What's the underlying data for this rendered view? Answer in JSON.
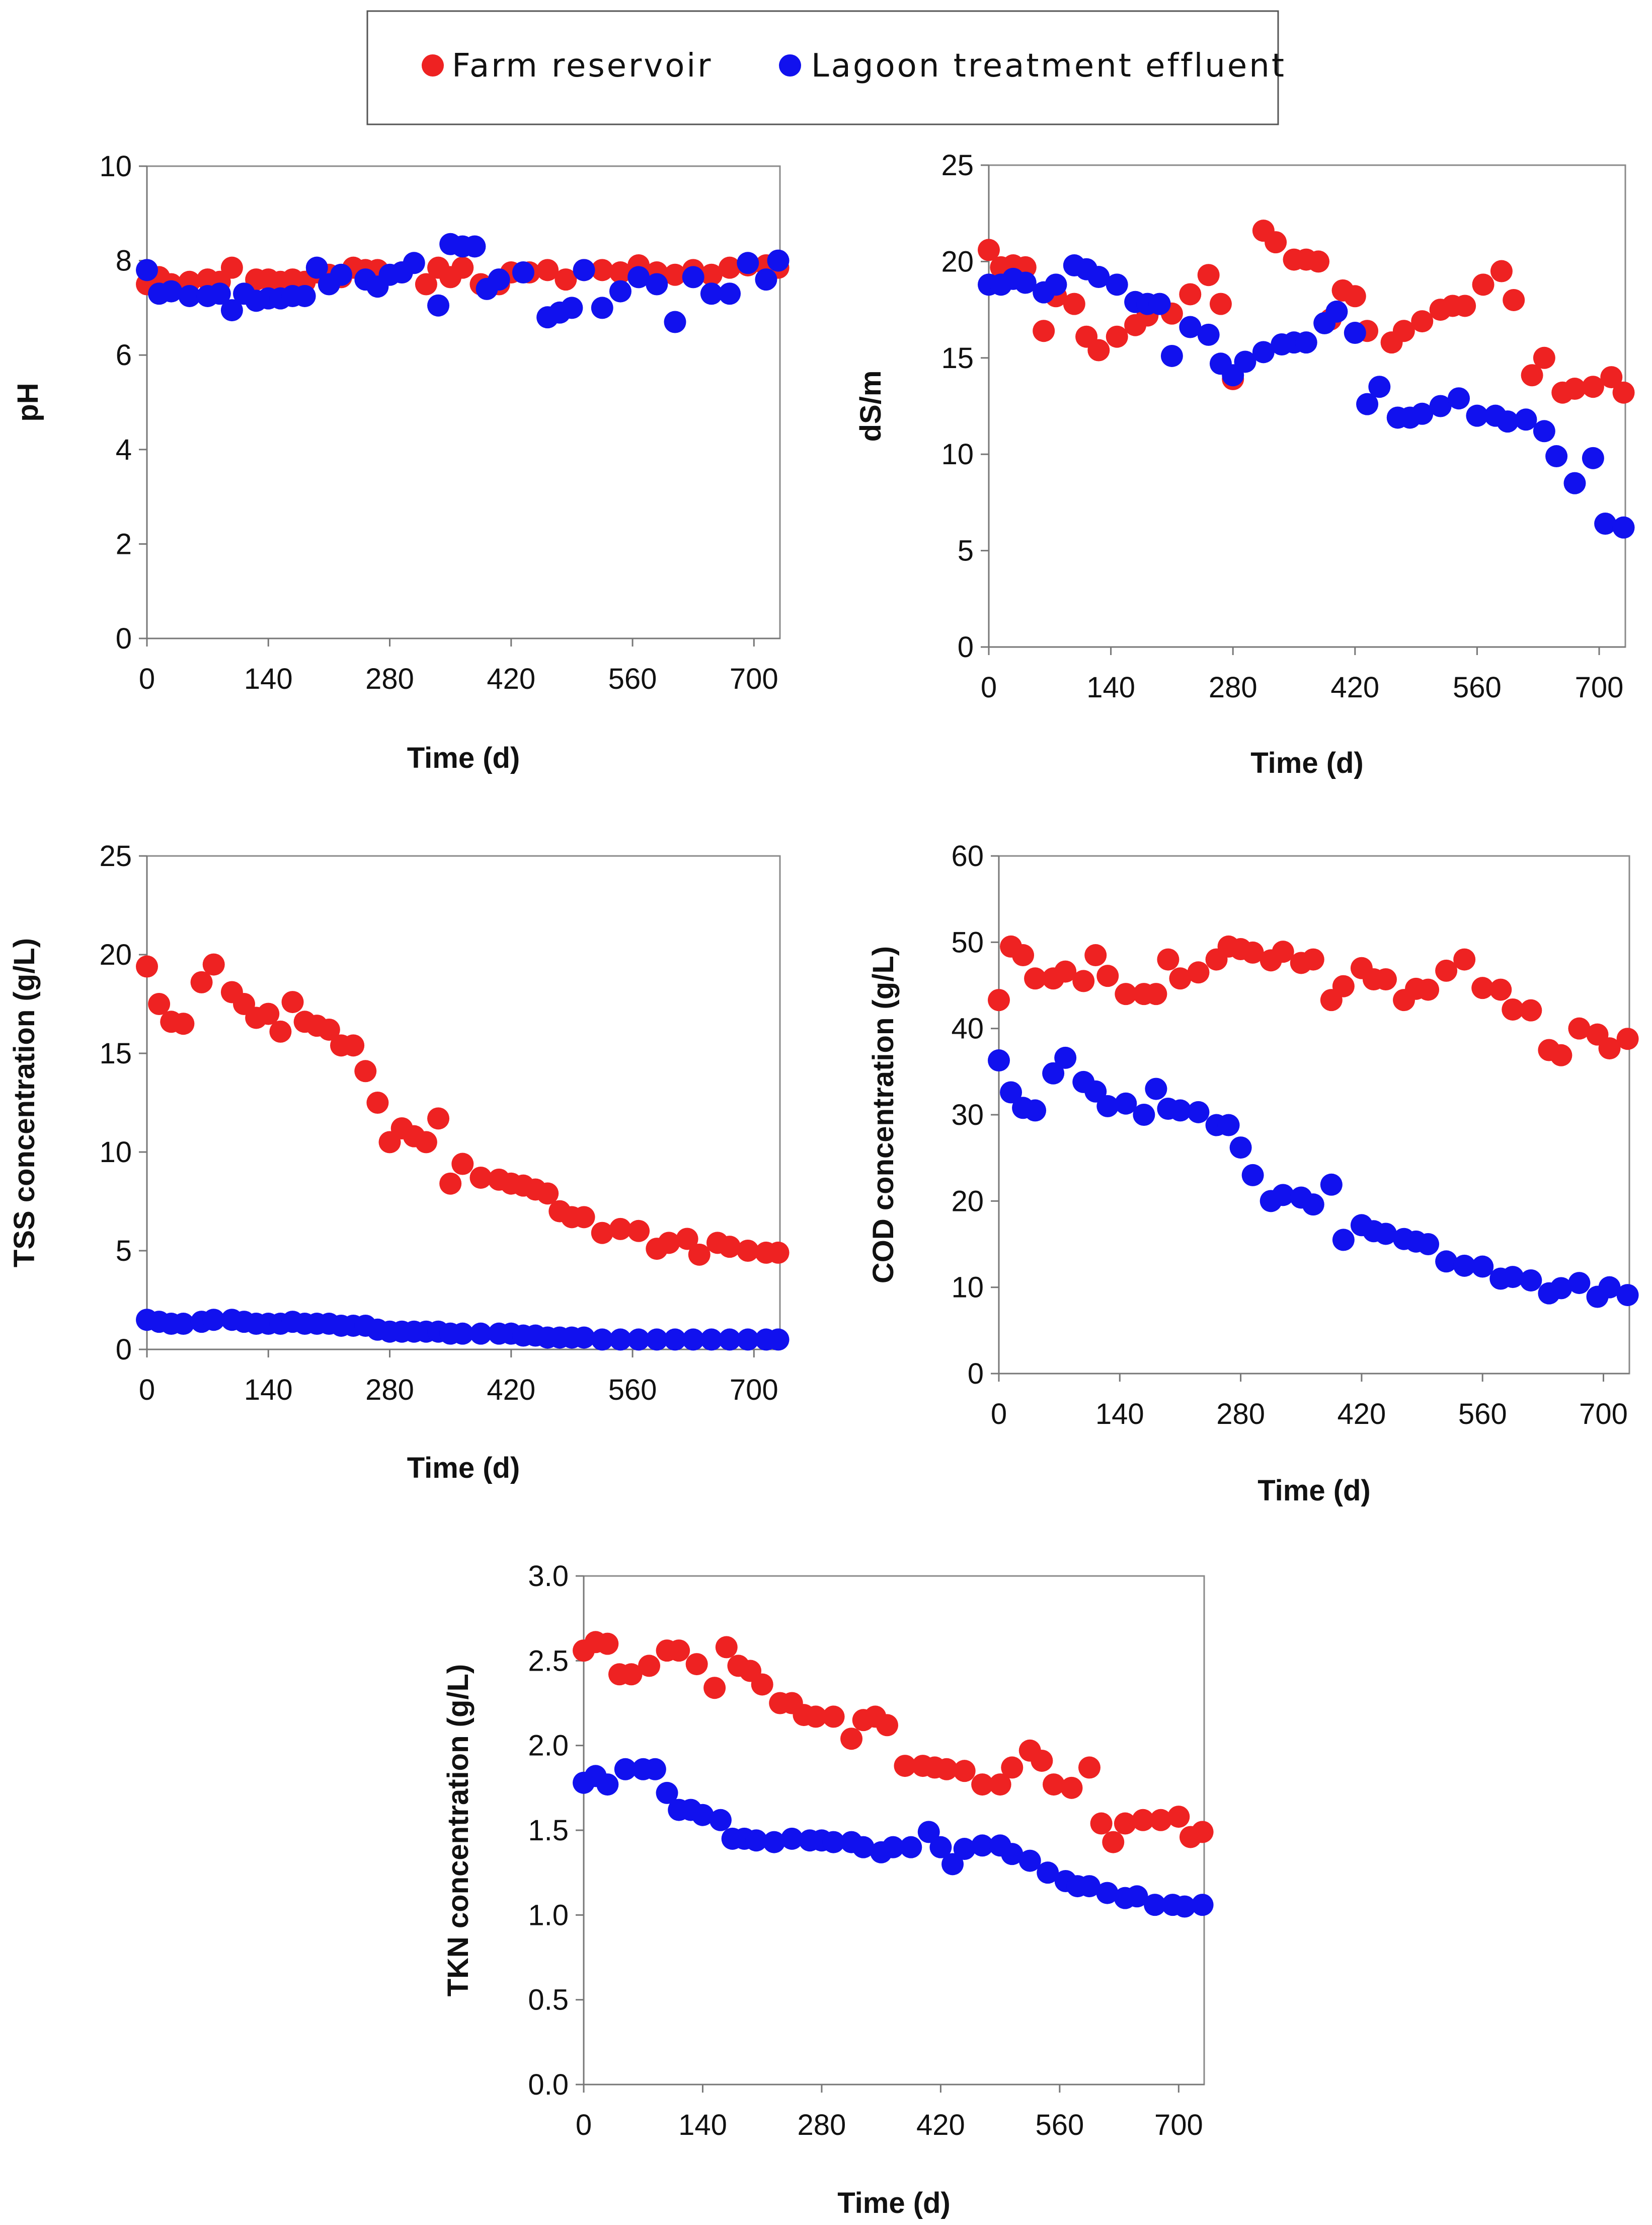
{
  "legend": {
    "items": [
      {
        "label": "Farm reservoir",
        "color": "#ee2222"
      },
      {
        "label": "Lagoon treatment effluent",
        "color": "#1111ee"
      }
    ]
  },
  "chart_data": [
    {
      "id": "ph",
      "type": "scatter",
      "title": "",
      "xlabel": "Time (d)",
      "ylabel": "pH",
      "xlim": [
        0,
        730
      ],
      "ylim": [
        0,
        10
      ],
      "xticks": [
        0,
        140,
        280,
        420,
        560,
        700
      ],
      "yticks": [
        0,
        2,
        4,
        6,
        8,
        10
      ],
      "ytick_labels": [
        "0",
        "2",
        "4",
        "6",
        "8",
        "10"
      ],
      "series": [
        {
          "name": "Farm reservoir",
          "color": "#ee2222",
          "x": [
            0,
            14,
            28,
            49,
            70,
            84,
            98,
            126,
            140,
            154,
            168,
            182,
            196,
            210,
            224,
            238,
            252,
            266,
            294,
            322,
            336,
            350,
            364,
            385,
            406,
            420,
            441,
            462,
            483,
            504,
            525,
            546,
            567,
            588,
            609,
            630,
            651,
            672,
            693,
            714,
            728
          ],
          "y": [
            7.5,
            7.65,
            7.5,
            7.55,
            7.6,
            7.55,
            7.85,
            7.6,
            7.6,
            7.55,
            7.6,
            7.55,
            7.75,
            7.7,
            7.65,
            7.85,
            7.8,
            7.8,
            7.75,
            7.5,
            7.85,
            7.65,
            7.85,
            7.5,
            7.5,
            7.75,
            7.75,
            7.8,
            7.6,
            7.8,
            7.8,
            7.75,
            7.9,
            7.75,
            7.7,
            7.8,
            7.7,
            7.85,
            7.9,
            7.9,
            7.85
          ]
        },
        {
          "name": "Lagoon treatment effluent",
          "color": "#1111ee",
          "x": [
            0,
            14,
            28,
            49,
            70,
            84,
            98,
            112,
            126,
            140,
            154,
            168,
            182,
            196,
            210,
            224,
            252,
            266,
            280,
            294,
            308,
            336,
            350,
            364,
            378,
            392,
            406,
            434,
            462,
            476,
            490,
            504,
            525,
            546,
            567,
            588,
            609,
            630,
            651,
            672,
            693,
            714,
            728
          ],
          "y": [
            7.8,
            7.3,
            7.35,
            7.25,
            7.25,
            7.3,
            6.95,
            7.3,
            7.15,
            7.2,
            7.2,
            7.25,
            7.25,
            7.85,
            7.5,
            7.7,
            7.6,
            7.45,
            7.7,
            7.75,
            7.95,
            7.05,
            8.35,
            8.3,
            8.3,
            7.4,
            7.6,
            7.75,
            6.8,
            6.9,
            7.0,
            7.8,
            7.0,
            7.35,
            7.65,
            7.5,
            6.7,
            7.65,
            7.3,
            7.3,
            7.95,
            7.6,
            8.0
          ]
        }
      ]
    },
    {
      "id": "ec",
      "type": "scatter",
      "title": "",
      "xlabel": "Time (d)",
      "ylabel": "dS/m",
      "xlim": [
        0,
        730
      ],
      "ylim": [
        0,
        25
      ],
      "xticks": [
        0,
        140,
        280,
        420,
        560,
        700
      ],
      "yticks": [
        0,
        5,
        10,
        15,
        20,
        25
      ],
      "ytick_labels": [
        "0",
        "5",
        "10",
        "15",
        "20",
        "25"
      ],
      "series": [
        {
          "name": "Farm reservoir",
          "color": "#ee2222",
          "x": [
            0,
            14,
            28,
            42,
            63,
            77,
            98,
            112,
            126,
            147,
            168,
            182,
            210,
            231,
            252,
            266,
            280,
            315,
            329,
            350,
            364,
            378,
            392,
            406,
            420,
            434,
            462,
            476,
            497,
            518,
            532,
            546,
            567,
            588,
            602,
            623,
            637,
            658,
            672,
            693,
            714,
            728
          ],
          "y": [
            20.6,
            19.7,
            19.8,
            19.7,
            16.4,
            18.2,
            17.8,
            16.1,
            15.4,
            16.1,
            16.7,
            17.2,
            17.3,
            18.3,
            19.3,
            17.8,
            13.9,
            21.6,
            21.0,
            20.1,
            20.1,
            20.0,
            17.0,
            18.5,
            18.2,
            16.4,
            15.8,
            16.4,
            16.9,
            17.5,
            17.7,
            17.7,
            18.8,
            19.5,
            18.0,
            14.1,
            15.0,
            13.2,
            13.4,
            13.5,
            14.0,
            13.2
          ]
        },
        {
          "name": "Lagoon treatment effluent",
          "color": "#1111ee",
          "x": [
            0,
            14,
            28,
            42,
            63,
            77,
            98,
            112,
            126,
            147,
            168,
            182,
            196,
            210,
            231,
            252,
            266,
            280,
            294,
            315,
            336,
            350,
            364,
            385,
            399,
            420,
            434,
            448,
            469,
            483,
            497,
            518,
            539,
            560,
            581,
            595,
            616,
            637,
            651,
            672,
            693,
            707,
            728
          ],
          "y": [
            18.8,
            18.8,
            19.1,
            18.9,
            18.4,
            18.8,
            19.8,
            19.6,
            19.2,
            18.8,
            17.9,
            17.8,
            17.8,
            15.1,
            16.6,
            16.2,
            14.7,
            14.1,
            14.8,
            15.3,
            15.7,
            15.8,
            15.8,
            16.8,
            17.4,
            16.3,
            12.6,
            13.5,
            11.9,
            11.9,
            12.1,
            12.5,
            12.9,
            12.0,
            12.0,
            11.7,
            11.8,
            11.2,
            9.9,
            8.5,
            9.8,
            6.4,
            6.2
          ]
        }
      ]
    },
    {
      "id": "tss",
      "type": "scatter",
      "title": "",
      "xlabel": "Time (d)",
      "ylabel": "TSS concentration (g/L)",
      "xlim": [
        0,
        730
      ],
      "ylim": [
        0,
        25
      ],
      "xticks": [
        0,
        140,
        280,
        420,
        560,
        700
      ],
      "yticks": [
        0,
        5,
        10,
        15,
        20,
        25
      ],
      "ytick_labels": [
        "0",
        "5",
        "10",
        "15",
        "20",
        "25"
      ],
      "series": [
        {
          "name": "Farm reservoir",
          "color": "#ee2222",
          "x": [
            0,
            14,
            28,
            42,
            63,
            77,
            98,
            112,
            126,
            140,
            154,
            168,
            182,
            196,
            210,
            224,
            238,
            252,
            266,
            280,
            294,
            308,
            322,
            336,
            350,
            364,
            385,
            406,
            420,
            434,
            448,
            462,
            476,
            490,
            504,
            525,
            546,
            567,
            588,
            602,
            623,
            637,
            658,
            672,
            693,
            714,
            728
          ],
          "y": [
            19.4,
            17.5,
            16.6,
            16.5,
            18.6,
            19.5,
            18.1,
            17.5,
            16.8,
            17.0,
            16.1,
            17.6,
            16.6,
            16.4,
            16.2,
            15.4,
            15.4,
            14.1,
            12.5,
            10.5,
            11.2,
            10.8,
            10.5,
            11.7,
            8.4,
            9.4,
            8.7,
            8.6,
            8.4,
            8.3,
            8.1,
            7.9,
            7.0,
            6.7,
            6.7,
            5.9,
            6.1,
            6.0,
            5.1,
            5.4,
            5.6,
            4.8,
            5.4,
            5.2,
            5.0,
            4.9,
            4.9
          ]
        },
        {
          "name": "Lagoon treatment effluent",
          "color": "#1111ee",
          "x": [
            0,
            14,
            28,
            42,
            63,
            77,
            98,
            112,
            126,
            140,
            154,
            168,
            182,
            196,
            210,
            224,
            238,
            252,
            266,
            280,
            294,
            308,
            322,
            336,
            350,
            364,
            385,
            406,
            420,
            434,
            448,
            462,
            476,
            490,
            504,
            525,
            546,
            567,
            588,
            609,
            630,
            651,
            672,
            693,
            714,
            728
          ],
          "y": [
            1.5,
            1.4,
            1.3,
            1.3,
            1.4,
            1.5,
            1.5,
            1.4,
            1.3,
            1.3,
            1.3,
            1.4,
            1.3,
            1.3,
            1.3,
            1.2,
            1.2,
            1.2,
            1.0,
            0.9,
            0.9,
            0.9,
            0.9,
            0.9,
            0.8,
            0.8,
            0.8,
            0.8,
            0.8,
            0.7,
            0.7,
            0.6,
            0.6,
            0.6,
            0.6,
            0.5,
            0.5,
            0.5,
            0.5,
            0.5,
            0.5,
            0.5,
            0.5,
            0.5,
            0.5,
            0.5
          ]
        }
      ]
    },
    {
      "id": "cod",
      "type": "scatter",
      "title": "",
      "xlabel": "Time (d)",
      "ylabel": "COD concentration (g/L)",
      "xlim": [
        0,
        730
      ],
      "ylim": [
        0,
        60
      ],
      "xticks": [
        0,
        140,
        280,
        420,
        560,
        700
      ],
      "yticks": [
        0,
        10,
        20,
        30,
        40,
        50,
        60
      ],
      "ytick_labels": [
        "0",
        "10",
        "20",
        "30",
        "40",
        "50",
        "60"
      ],
      "series": [
        {
          "name": "Farm reservoir",
          "color": "#ee2222",
          "x": [
            0,
            14,
            28,
            42,
            63,
            77,
            98,
            112,
            126,
            147,
            168,
            182,
            196,
            210,
            231,
            252,
            266,
            280,
            294,
            315,
            329,
            350,
            364,
            385,
            399,
            420,
            434,
            448,
            469,
            483,
            497,
            518,
            539,
            560,
            581,
            595,
            616,
            637,
            651,
            672,
            693,
            707,
            728
          ],
          "y": [
            43.3,
            49.5,
            48.5,
            45.8,
            45.8,
            46.6,
            45.5,
            48.5,
            46.1,
            44.0,
            44.0,
            44.0,
            48.0,
            45.8,
            46.5,
            48.0,
            49.5,
            49.2,
            48.8,
            47.9,
            48.9,
            47.6,
            48.0,
            43.3,
            44.9,
            47.0,
            45.7,
            45.7,
            43.3,
            44.6,
            44.5,
            46.7,
            48.0,
            44.7,
            44.5,
            42.2,
            42.1,
            37.5,
            36.9,
            40.0,
            39.3,
            37.7,
            38.8
          ]
        },
        {
          "name": "Lagoon treatment effluent",
          "color": "#1111ee",
          "x": [
            0,
            14,
            28,
            42,
            63,
            77,
            98,
            112,
            126,
            147,
            168,
            182,
            196,
            210,
            231,
            252,
            266,
            280,
            294,
            315,
            329,
            350,
            364,
            385,
            399,
            420,
            434,
            448,
            469,
            483,
            497,
            518,
            539,
            560,
            581,
            595,
            616,
            637,
            651,
            672,
            693,
            707,
            728
          ],
          "y": [
            36.3,
            32.6,
            30.8,
            30.5,
            34.8,
            36.6,
            33.8,
            32.7,
            31.0,
            31.3,
            30.0,
            33.0,
            30.7,
            30.5,
            30.3,
            28.8,
            28.8,
            26.2,
            23.0,
            20.0,
            20.7,
            20.4,
            19.6,
            21.9,
            15.5,
            17.2,
            16.5,
            16.2,
            15.6,
            15.3,
            15.0,
            13.0,
            12.5,
            12.4,
            11.0,
            11.2,
            10.8,
            9.3,
            9.9,
            10.5,
            8.9,
            10.0,
            9.1
          ]
        }
      ]
    },
    {
      "id": "tkn",
      "type": "scatter",
      "title": "",
      "xlabel": "Time (d)",
      "ylabel": "TKN concentration (g/L)",
      "xlim": [
        0,
        730
      ],
      "ylim": [
        0,
        3
      ],
      "xticks": [
        0,
        140,
        280,
        420,
        560,
        700
      ],
      "yticks": [
        0,
        0.5,
        1,
        1.5,
        2,
        2.5,
        3
      ],
      "ytick_labels": [
        "0.0",
        "0.5",
        "1.0",
        "1.5",
        "2.0",
        "2.5",
        "3.0"
      ],
      "series": [
        {
          "name": "Farm reservoir",
          "color": "#ee2222",
          "x": [
            0,
            14,
            28,
            42,
            56,
            77,
            98,
            112,
            133,
            154,
            168,
            182,
            196,
            210,
            231,
            245,
            259,
            273,
            294,
            315,
            329,
            343,
            357,
            378,
            399,
            413,
            427,
            448,
            469,
            490,
            504,
            525,
            539,
            553,
            574,
            595,
            609,
            623,
            637,
            658,
            679,
            700,
            714,
            728
          ],
          "y": [
            2.56,
            2.61,
            2.6,
            2.42,
            2.42,
            2.47,
            2.56,
            2.56,
            2.48,
            2.34,
            2.58,
            2.47,
            2.44,
            2.36,
            2.25,
            2.25,
            2.18,
            2.17,
            2.17,
            2.04,
            2.15,
            2.17,
            2.12,
            1.88,
            1.88,
            1.87,
            1.86,
            1.85,
            1.77,
            1.77,
            1.87,
            1.97,
            1.91,
            1.77,
            1.75,
            1.87,
            1.54,
            1.43,
            1.54,
            1.56,
            1.56,
            1.58,
            1.46,
            1.49
          ]
        },
        {
          "name": "Lagoon treatment effluent",
          "color": "#1111ee",
          "x": [
            0,
            14,
            28,
            49,
            70,
            84,
            98,
            112,
            126,
            140,
            161,
            175,
            189,
            203,
            224,
            245,
            266,
            280,
            294,
            315,
            329,
            350,
            364,
            385,
            406,
            420,
            434,
            448,
            469,
            490,
            504,
            525,
            546,
            567,
            581,
            595,
            616,
            637,
            651,
            672,
            693,
            707,
            728
          ],
          "y": [
            1.78,
            1.82,
            1.77,
            1.86,
            1.86,
            1.86,
            1.72,
            1.62,
            1.62,
            1.59,
            1.56,
            1.45,
            1.45,
            1.44,
            1.43,
            1.45,
            1.44,
            1.44,
            1.43,
            1.43,
            1.4,
            1.37,
            1.4,
            1.4,
            1.49,
            1.4,
            1.3,
            1.39,
            1.41,
            1.41,
            1.36,
            1.32,
            1.25,
            1.2,
            1.17,
            1.17,
            1.13,
            1.1,
            1.11,
            1.06,
            1.06,
            1.05,
            1.06
          ]
        }
      ]
    }
  ]
}
